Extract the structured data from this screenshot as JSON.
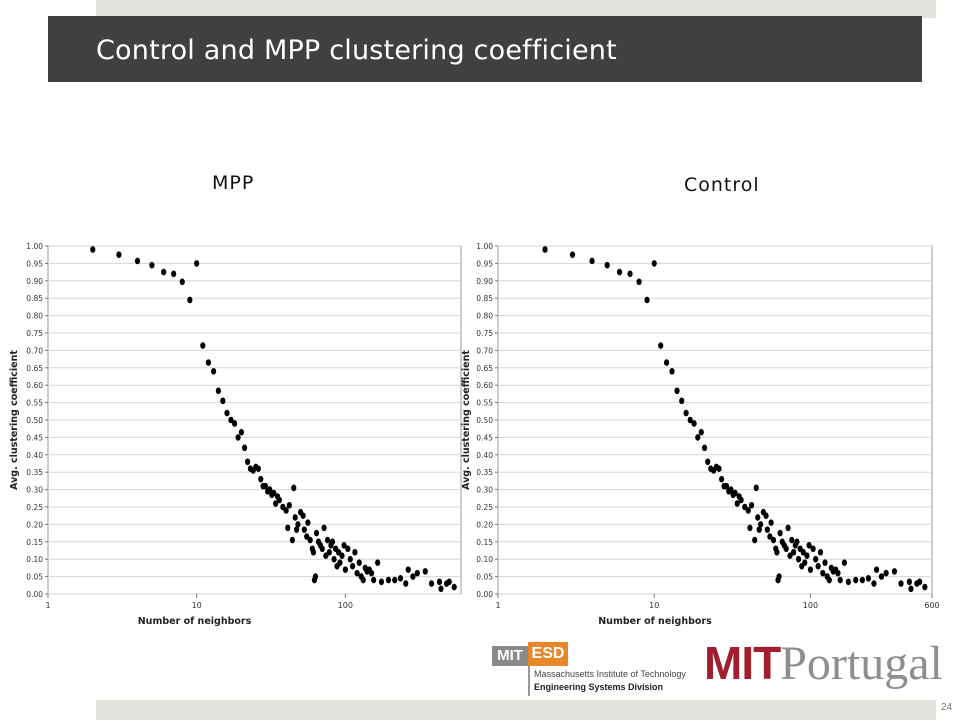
{
  "slide": {
    "title": "Control and MPP clustering coefficient",
    "page_number": "24"
  },
  "colors": {
    "title_bar": "#404040",
    "strip": "#e3e3dd",
    "point": "#000000",
    "mit_red": "#a01e2d",
    "esd_orange": "#e8862a"
  },
  "logos": {
    "esd_mit": "MIT",
    "esd_esd": "ESD",
    "esd_line1": "Massachusetts Institute of Technology",
    "esd_line2": "Engineering Systems Division",
    "mitp_mit": "MIT",
    "mitp_portugal": "Portugal"
  },
  "chart_data": [
    {
      "type": "scatter",
      "title": "MPP",
      "xlabel": "Number of neighbors",
      "ylabel": "Avg. clustering coefficient",
      "xscale": "log",
      "xlim": [
        1,
        600
      ],
      "ylim": [
        0,
        1.0
      ],
      "xticks": [
        1,
        10,
        100
      ],
      "xtick_labels": [
        "1",
        "10",
        "100"
      ],
      "yticks": [
        0,
        0.05,
        0.1,
        0.15,
        0.2,
        0.25,
        0.3,
        0.35,
        0.4,
        0.45,
        0.5,
        0.55,
        0.6,
        0.65,
        0.7,
        0.75,
        0.8,
        0.85,
        0.9,
        0.95,
        1.0
      ],
      "ytick_labels": [
        "0.00",
        "0.05",
        "0.10",
        "0.15",
        "0.20",
        "0.25",
        "0.30",
        "0.35",
        "0.40",
        "0.45",
        "0.50",
        "0.55",
        "0.60",
        "0.65",
        "0.70",
        "0.75",
        "0.80",
        "0.85",
        "0.90",
        "0.95",
        "1.00"
      ],
      "grid": "horizontal",
      "points": [
        [
          2,
          0.99
        ],
        [
          3,
          0.975
        ],
        [
          4,
          0.957
        ],
        [
          5,
          0.945
        ],
        [
          6,
          0.925
        ],
        [
          7,
          0.92
        ],
        [
          8,
          0.897
        ],
        [
          9,
          0.845
        ],
        [
          10,
          0.95
        ],
        [
          11,
          0.714
        ],
        [
          12,
          0.665
        ],
        [
          13,
          0.64
        ],
        [
          14,
          0.584
        ],
        [
          15,
          0.555
        ],
        [
          16,
          0.52
        ],
        [
          17,
          0.5
        ],
        [
          18,
          0.49
        ],
        [
          19,
          0.45
        ],
        [
          20,
          0.465
        ],
        [
          21,
          0.42
        ],
        [
          22,
          0.38
        ],
        [
          23,
          0.36
        ],
        [
          24,
          0.355
        ],
        [
          25,
          0.365
        ],
        [
          26,
          0.36
        ],
        [
          27,
          0.33
        ],
        [
          28,
          0.31
        ],
        [
          29,
          0.31
        ],
        [
          30,
          0.295
        ],
        [
          31,
          0.3
        ],
        [
          32,
          0.285
        ],
        [
          33,
          0.29
        ],
        [
          34,
          0.26
        ],
        [
          35,
          0.28
        ],
        [
          36,
          0.27
        ],
        [
          38,
          0.25
        ],
        [
          40,
          0.24
        ],
        [
          41,
          0.19
        ],
        [
          42,
          0.255
        ],
        [
          44,
          0.155
        ],
        [
          45,
          0.305
        ],
        [
          46,
          0.22
        ],
        [
          47,
          0.185
        ],
        [
          48,
          0.2
        ],
        [
          50,
          0.235
        ],
        [
          52,
          0.225
        ],
        [
          53,
          0.185
        ],
        [
          55,
          0.165
        ],
        [
          56,
          0.205
        ],
        [
          58,
          0.155
        ],
        [
          60,
          0.13
        ],
        [
          61,
          0.12
        ],
        [
          62,
          0.04
        ],
        [
          63,
          0.05
        ],
        [
          64,
          0.175
        ],
        [
          66,
          0.15
        ],
        [
          68,
          0.14
        ],
        [
          70,
          0.13
        ],
        [
          72,
          0.19
        ],
        [
          74,
          0.11
        ],
        [
          76,
          0.155
        ],
        [
          78,
          0.12
        ],
        [
          80,
          0.14
        ],
        [
          82,
          0.15
        ],
        [
          84,
          0.1
        ],
        [
          86,
          0.13
        ],
        [
          88,
          0.08
        ],
        [
          90,
          0.12
        ],
        [
          92,
          0.09
        ],
        [
          95,
          0.11
        ],
        [
          98,
          0.14
        ],
        [
          100,
          0.07
        ],
        [
          104,
          0.13
        ],
        [
          108,
          0.1
        ],
        [
          112,
          0.08
        ],
        [
          116,
          0.12
        ],
        [
          120,
          0.06
        ],
        [
          124,
          0.09
        ],
        [
          128,
          0.05
        ],
        [
          132,
          0.04
        ],
        [
          136,
          0.075
        ],
        [
          140,
          0.065
        ],
        [
          145,
          0.07
        ],
        [
          150,
          0.06
        ],
        [
          155,
          0.04
        ],
        [
          165,
          0.09
        ],
        [
          175,
          0.035
        ],
        [
          195,
          0.04
        ],
        [
          215,
          0.04
        ],
        [
          235,
          0.045
        ],
        [
          255,
          0.03
        ],
        [
          265,
          0.07
        ],
        [
          285,
          0.05
        ],
        [
          305,
          0.06
        ],
        [
          345,
          0.065
        ],
        [
          380,
          0.03
        ],
        [
          430,
          0.035
        ],
        [
          440,
          0.015
        ],
        [
          480,
          0.03
        ],
        [
          500,
          0.035
        ],
        [
          540,
          0.02
        ]
      ]
    },
    {
      "type": "scatter",
      "title": "Control",
      "xlabel": "Number of neighbors",
      "ylabel": "Avg. clustering coefficient",
      "xscale": "log",
      "xlim": [
        1,
        600
      ],
      "ylim": [
        0,
        1.0
      ],
      "xticks": [
        1,
        10,
        100,
        600
      ],
      "xtick_labels": [
        "1",
        "10",
        "100",
        "600"
      ],
      "yticks": [
        0,
        0.05,
        0.1,
        0.15,
        0.2,
        0.25,
        0.3,
        0.35,
        0.4,
        0.45,
        0.5,
        0.55,
        0.6,
        0.65,
        0.7,
        0.75,
        0.8,
        0.85,
        0.9,
        0.95,
        1.0
      ],
      "ytick_labels": [
        "0.00",
        "0.05",
        "0.10",
        "0.15",
        "0.20",
        "0.25",
        "0.30",
        "0.35",
        "0.40",
        "0.45",
        "0.50",
        "0.55",
        "0.60",
        "0.65",
        "0.70",
        "0.75",
        "0.80",
        "0.85",
        "0.90",
        "0.95",
        "1.00"
      ],
      "grid": "horizontal",
      "points": [
        [
          2,
          0.99
        ],
        [
          3,
          0.975
        ],
        [
          4,
          0.957
        ],
        [
          5,
          0.945
        ],
        [
          6,
          0.925
        ],
        [
          7,
          0.92
        ],
        [
          8,
          0.897
        ],
        [
          9,
          0.845
        ],
        [
          10,
          0.95
        ],
        [
          11,
          0.714
        ],
        [
          12,
          0.665
        ],
        [
          13,
          0.64
        ],
        [
          14,
          0.584
        ],
        [
          15,
          0.555
        ],
        [
          16,
          0.52
        ],
        [
          17,
          0.5
        ],
        [
          18,
          0.49
        ],
        [
          19,
          0.45
        ],
        [
          20,
          0.465
        ],
        [
          21,
          0.42
        ],
        [
          22,
          0.38
        ],
        [
          23,
          0.36
        ],
        [
          24,
          0.355
        ],
        [
          25,
          0.365
        ],
        [
          26,
          0.36
        ],
        [
          27,
          0.33
        ],
        [
          28,
          0.31
        ],
        [
          29,
          0.31
        ],
        [
          30,
          0.295
        ],
        [
          31,
          0.3
        ],
        [
          32,
          0.285
        ],
        [
          33,
          0.29
        ],
        [
          34,
          0.26
        ],
        [
          35,
          0.28
        ],
        [
          36,
          0.27
        ],
        [
          38,
          0.25
        ],
        [
          40,
          0.24
        ],
        [
          41,
          0.19
        ],
        [
          42,
          0.255
        ],
        [
          44,
          0.155
        ],
        [
          45,
          0.305
        ],
        [
          46,
          0.22
        ],
        [
          47,
          0.185
        ],
        [
          48,
          0.2
        ],
        [
          50,
          0.235
        ],
        [
          52,
          0.225
        ],
        [
          53,
          0.185
        ],
        [
          55,
          0.165
        ],
        [
          56,
          0.205
        ],
        [
          58,
          0.155
        ],
        [
          60,
          0.13
        ],
        [
          61,
          0.12
        ],
        [
          62,
          0.04
        ],
        [
          63,
          0.05
        ],
        [
          64,
          0.175
        ],
        [
          66,
          0.15
        ],
        [
          68,
          0.14
        ],
        [
          70,
          0.13
        ],
        [
          72,
          0.19
        ],
        [
          74,
          0.11
        ],
        [
          76,
          0.155
        ],
        [
          78,
          0.12
        ],
        [
          80,
          0.14
        ],
        [
          82,
          0.15
        ],
        [
          84,
          0.1
        ],
        [
          86,
          0.13
        ],
        [
          88,
          0.08
        ],
        [
          90,
          0.12
        ],
        [
          92,
          0.09
        ],
        [
          95,
          0.11
        ],
        [
          98,
          0.14
        ],
        [
          100,
          0.07
        ],
        [
          104,
          0.13
        ],
        [
          108,
          0.1
        ],
        [
          112,
          0.08
        ],
        [
          116,
          0.12
        ],
        [
          120,
          0.06
        ],
        [
          124,
          0.09
        ],
        [
          128,
          0.05
        ],
        [
          132,
          0.04
        ],
        [
          136,
          0.075
        ],
        [
          140,
          0.065
        ],
        [
          145,
          0.07
        ],
        [
          150,
          0.06
        ],
        [
          155,
          0.04
        ],
        [
          165,
          0.09
        ],
        [
          175,
          0.035
        ],
        [
          195,
          0.04
        ],
        [
          215,
          0.04
        ],
        [
          235,
          0.045
        ],
        [
          255,
          0.03
        ],
        [
          265,
          0.07
        ],
        [
          285,
          0.05
        ],
        [
          305,
          0.06
        ],
        [
          345,
          0.065
        ],
        [
          380,
          0.03
        ],
        [
          430,
          0.035
        ],
        [
          440,
          0.015
        ],
        [
          480,
          0.03
        ],
        [
          500,
          0.035
        ],
        [
          540,
          0.02
        ]
      ]
    }
  ]
}
